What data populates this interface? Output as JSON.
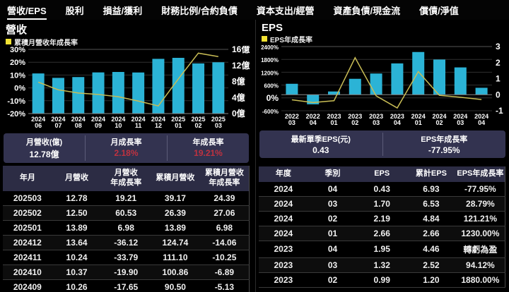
{
  "nav": {
    "tabs": [
      {
        "key": "revenue-eps",
        "label": "營收/EPS",
        "active": true
      },
      {
        "key": "dividend",
        "label": "股利",
        "active": false
      },
      {
        "key": "income-profit",
        "label": "損益/獲利",
        "active": false
      },
      {
        "key": "financial-ratio-contract-liability",
        "label": "財務比例/合約負債",
        "active": false
      },
      {
        "key": "capex-operating",
        "label": "資本支出/經營",
        "active": false
      },
      {
        "key": "balance-sheet-cashflow",
        "label": "資產負債/現金流",
        "active": false
      },
      {
        "key": "debt-net-worth",
        "label": "償債/淨值",
        "active": false
      }
    ]
  },
  "colors": {
    "bar": "#2bb3d6",
    "line": "#c9bd55",
    "legend_swatch": "#f2e233",
    "positive_red": "#bf3240",
    "card_bg": "#333350",
    "header_bg": "#2c2c44"
  },
  "left_panel": {
    "summary": [
      {
        "key": "monthly-revenue",
        "label": "月營收(億)",
        "value": "12.78億",
        "value_color": "#ffffff"
      },
      {
        "key": "mom-growth",
        "label": "月成長率",
        "value": "2.18%",
        "value_color": "#bf3240"
      },
      {
        "key": "yoy-growth",
        "label": "年成長率",
        "value": "19.21%",
        "value_color": "#bf3240"
      }
    ],
    "table": {
      "headers": [
        "年月",
        "月營收",
        "月營收\n年成長率",
        "累積月營收",
        "累積月營收\n年成長率"
      ],
      "rows": [
        [
          "202503",
          "12.78",
          "19.21",
          "39.17",
          "24.39"
        ],
        [
          "202502",
          "12.50",
          "60.53",
          "26.39",
          "27.06"
        ],
        [
          "202501",
          "13.89",
          "6.98",
          "13.89",
          "6.98"
        ],
        [
          "202412",
          "13.64",
          "-36.12",
          "124.74",
          "-14.06"
        ],
        [
          "202411",
          "10.24",
          "-33.79",
          "111.10",
          "-10.25"
        ],
        [
          "202410",
          "10.37",
          "-19.90",
          "100.86",
          "-6.89"
        ],
        [
          "202409",
          "10.26",
          "-17.65",
          "90.50",
          "-5.13"
        ]
      ]
    }
  },
  "right_panel": {
    "summary": [
      {
        "key": "latest-quarter-eps",
        "label": "最新單季EPS(元)",
        "value": "0.43",
        "value_color": "#ffffff"
      },
      {
        "key": "eps-yoy-growth",
        "label": "EPS年成長率",
        "value": "-77.95%",
        "value_color": "#ffffff"
      }
    ],
    "table": {
      "headers": [
        "年度",
        "季別",
        "EPS",
        "累計EPS",
        "EPS年成長率"
      ],
      "rows": [
        [
          "2024",
          "04",
          "0.43",
          "6.93",
          "-77.95%"
        ],
        [
          "2024",
          "03",
          "1.70",
          "6.53",
          "28.79%"
        ],
        [
          "2024",
          "02",
          "2.19",
          "4.84",
          "121.21%"
        ],
        [
          "2024",
          "01",
          "2.66",
          "2.66",
          "1230.00%"
        ],
        [
          "2023",
          "04",
          "1.95",
          "4.46",
          "轉虧為盈"
        ],
        [
          "2023",
          "03",
          "1.32",
          "2.52",
          "94.12%"
        ],
        [
          "2023",
          "02",
          "0.99",
          "1.20",
          "1880.00%"
        ]
      ]
    }
  },
  "chart_data": [
    {
      "type": "bar+line",
      "title": "營收",
      "legend": "累積月營收年成長率",
      "categories": [
        "2024/06",
        "2024/07",
        "2024/08",
        "2024/09",
        "2024/10",
        "2024/11",
        "2024/12",
        "2025/01",
        "2025/02",
        "2025/03"
      ],
      "series": [
        {
          "name": "月營收(億)",
          "type": "bar",
          "axis": "right",
          "color": "#2bb3d6",
          "values": [
            10.0,
            8.9,
            9.1,
            10.26,
            10.37,
            10.24,
            13.64,
            13.89,
            12.5,
            12.78
          ]
        },
        {
          "name": "累積月營收年成長率(%)",
          "type": "line",
          "axis": "left",
          "color": "#c9bd55",
          "values": [
            4.5,
            -1.5,
            -4.0,
            -5.13,
            -6.89,
            -10.25,
            -14.06,
            6.98,
            27.06,
            24.39
          ]
        }
      ],
      "left_axis": {
        "min": -20,
        "max": 30,
        "ticks": [
          {
            "v": 30,
            "label": "30%"
          },
          {
            "v": 20,
            "label": "20%"
          },
          {
            "v": 10,
            "label": "10%"
          },
          {
            "v": 0,
            "label": "0%"
          },
          {
            "v": -10,
            "label": "-10%"
          },
          {
            "v": -20,
            "label": "-20%"
          }
        ]
      },
      "right_axis": {
        "min": 0,
        "max": 16,
        "ticks": [
          {
            "v": 16,
            "label": "16億"
          },
          {
            "v": 12,
            "label": "12億"
          },
          {
            "v": 8,
            "label": "8億"
          },
          {
            "v": 4,
            "label": "4億"
          },
          {
            "v": 0,
            "label": "0億"
          }
        ]
      },
      "grid": true,
      "legend_position": "top-left"
    },
    {
      "type": "bar+line",
      "title": "EPS",
      "legend": "EPS年成長率",
      "categories": [
        "2022/03",
        "2022/04",
        "2023/01",
        "2023/02",
        "2023/03",
        "2023/04",
        "2024/01",
        "2024/02",
        "2024/03",
        "2024/04"
      ],
      "series": [
        {
          "name": "單季EPS(元)",
          "type": "bar",
          "axis": "right",
          "color": "#2bb3d6",
          "values": [
            0.68,
            -0.6,
            0.2,
            0.99,
            1.32,
            1.95,
            2.66,
            2.19,
            1.7,
            0.43
          ]
        },
        {
          "name": "EPS年成長率(%)",
          "type": "line",
          "axis": "left",
          "color": "#c9bd55",
          "values": [
            -90,
            -215,
            -130,
            1880,
            94.12,
            -470,
            1230,
            121.21,
            28.79,
            -77.95
          ]
        }
      ],
      "left_axis": {
        "min": -600,
        "max": 2400,
        "ticks": [
          {
            "v": 2400,
            "label": "2400%"
          },
          {
            "v": 1800,
            "label": "1800%"
          },
          {
            "v": 1200,
            "label": "1200%"
          },
          {
            "v": 600,
            "label": "600%"
          },
          {
            "v": 0,
            "label": "0%"
          },
          {
            "v": -600,
            "label": "-600%"
          }
        ]
      },
      "right_axis": {
        "min": -1,
        "max": 3,
        "ticks": [
          {
            "v": 3,
            "label": "3"
          },
          {
            "v": 2,
            "label": "2"
          },
          {
            "v": 1,
            "label": "1"
          },
          {
            "v": 0,
            "label": "0"
          },
          {
            "v": -1,
            "label": "-1"
          }
        ]
      },
      "grid": true,
      "legend_position": "top-left"
    }
  ]
}
